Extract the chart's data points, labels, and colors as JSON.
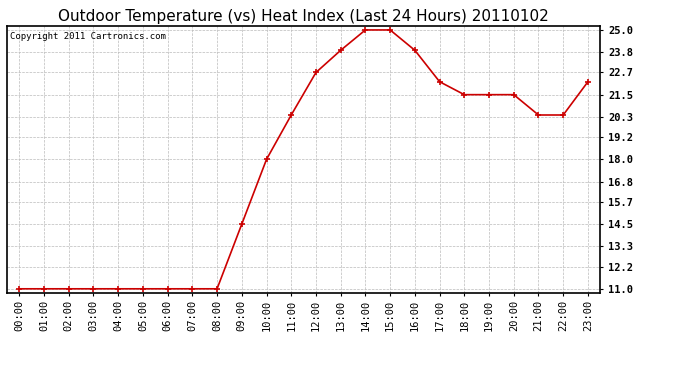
{
  "title": "Outdoor Temperature (vs) Heat Index (Last 24 Hours) 20110102",
  "copyright_text": "Copyright 2011 Cartronics.com",
  "x_labels": [
    "00:00",
    "01:00",
    "02:00",
    "03:00",
    "04:00",
    "05:00",
    "06:00",
    "07:00",
    "08:00",
    "09:00",
    "10:00",
    "11:00",
    "12:00",
    "13:00",
    "14:00",
    "15:00",
    "16:00",
    "17:00",
    "18:00",
    "19:00",
    "20:00",
    "21:00",
    "22:00",
    "23:00"
  ],
  "y_values": [
    11.0,
    11.0,
    11.0,
    11.0,
    11.0,
    11.0,
    11.0,
    11.0,
    11.0,
    14.5,
    18.0,
    20.4,
    22.7,
    23.9,
    25.0,
    25.0,
    23.9,
    22.2,
    21.5,
    21.5,
    21.5,
    20.4,
    20.4,
    22.2
  ],
  "y_ticks": [
    11.0,
    12.2,
    13.3,
    14.5,
    15.7,
    16.8,
    18.0,
    19.2,
    20.3,
    21.5,
    22.7,
    23.8,
    25.0
  ],
  "ylim": [
    10.8,
    25.2
  ],
  "line_color": "#cc0000",
  "marker_color": "#cc0000",
  "bg_color": "#ffffff",
  "plot_bg_color": "#ffffff",
  "grid_color": "#bbbbbb",
  "title_fontsize": 11,
  "tick_fontsize": 7.5,
  "copyright_fontsize": 6.5
}
